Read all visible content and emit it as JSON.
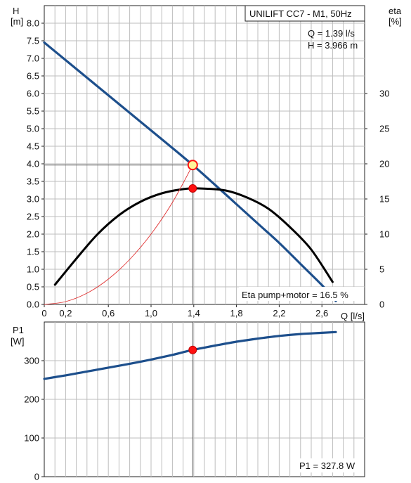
{
  "title": "UNILIFT CC7 - M1, 50Hz",
  "operating_point": {
    "q_text": "Q = 1.39 l/s",
    "h_text": "H = 3.966 m",
    "eta_text": "Eta pump+motor = 16.5 %",
    "p1_text": "P1 = 327.8 W"
  },
  "axes": {
    "h_unit_name": "H",
    "h_unit": "[m]",
    "eta_unit_name": "eta",
    "eta_unit": "[%]",
    "q_label": "Q [l/s]",
    "p1_unit_name": "P1",
    "p1_unit": "[W]"
  },
  "colors": {
    "h_curve": "#1d4f8c",
    "eta_curve": "#000000",
    "system_curve": "#e03030",
    "marker": "#ff1010",
    "marker_ring": "#ffd000",
    "grid": "#bdbdbd"
  },
  "chart_data": [
    {
      "type": "line",
      "title": "UNILIFT CC7 - M1, 50Hz",
      "xlabel": "Q [l/s]",
      "ylabel": "H [m]",
      "y2label": "eta [%]",
      "xlim": [
        0,
        3.0
      ],
      "ylim": [
        0,
        8.5
      ],
      "y2lim": [
        0,
        42.5
      ],
      "grid": true,
      "x_ticks": [
        "0",
        "0,2",
        "0,6",
        "1,0",
        "1,4",
        "1,8",
        "2,2",
        "2,6"
      ],
      "x_tick_values": [
        0,
        0.2,
        0.6,
        1.0,
        1.4,
        1.8,
        2.2,
        2.6
      ],
      "y_ticks": [
        "0.0",
        "0.5",
        "1.0",
        "1.5",
        "2.0",
        "2.5",
        "3.0",
        "3.5",
        "4.0",
        "4.5",
        "5.0",
        "5.5",
        "6.0",
        "6.5",
        "7.0",
        "7.5",
        "8.0"
      ],
      "y_tick_values": [
        0,
        0.5,
        1,
        1.5,
        2,
        2.5,
        3,
        3.5,
        4,
        4.5,
        5,
        5.5,
        6,
        6.5,
        7,
        7.5,
        8
      ],
      "y2_ticks": [
        "0",
        "5",
        "10",
        "15",
        "20",
        "25",
        "30"
      ],
      "y2_tick_values": [
        0,
        5,
        10,
        15,
        20,
        25,
        30
      ],
      "series": [
        {
          "axis": "y",
          "x": [
            0,
            0.2,
            0.4,
            0.6,
            0.8,
            1.0,
            1.2,
            1.39,
            1.6,
            1.8,
            2.0,
            2.2,
            2.4,
            2.6,
            2.73
          ],
          "values": [
            7.45,
            6.95,
            6.45,
            5.95,
            5.45,
            4.95,
            4.45,
            3.966,
            3.4,
            2.85,
            2.3,
            1.75,
            1.15,
            0.55,
            0.1
          ]
        },
        {
          "axis": "y2",
          "x": [
            0.1,
            0.3,
            0.5,
            0.7,
            0.9,
            1.1,
            1.3,
            1.45,
            1.7,
            1.9,
            2.1,
            2.3,
            2.5,
            2.7
          ],
          "values": [
            2.8,
            6.5,
            10.0,
            12.7,
            14.6,
            15.8,
            16.4,
            16.5,
            16.2,
            15.2,
            13.6,
            11.0,
            7.8,
            3.2
          ]
        },
        {
          "axis": "y",
          "x": [
            0,
            0.2,
            0.4,
            0.6,
            0.8,
            1.0,
            1.2,
            1.39
          ],
          "values": [
            0.0,
            0.08,
            0.32,
            0.72,
            1.28,
            2.0,
            2.9,
            3.966
          ]
        }
      ],
      "operating_point": {
        "x": 1.39,
        "y": 3.966,
        "eta": 16.5
      }
    },
    {
      "type": "line",
      "ylabel": "P1 [W]",
      "xlim": [
        0,
        3.0
      ],
      "ylim": [
        0,
        400
      ],
      "grid": true,
      "y_ticks": [
        "0",
        "100",
        "200",
        "300"
      ],
      "y_tick_values": [
        0,
        100,
        200,
        300
      ],
      "series": [
        {
          "x": [
            0,
            0.2,
            0.4,
            0.6,
            0.8,
            1.0,
            1.2,
            1.39,
            1.6,
            1.8,
            2.0,
            2.2,
            2.4,
            2.6,
            2.73
          ],
          "values": [
            253,
            262,
            272,
            282,
            292,
            303,
            315,
            327.8,
            339,
            349,
            357,
            364,
            369,
            372,
            374
          ]
        }
      ],
      "operating_point": {
        "x": 1.39,
        "y": 327.8
      }
    }
  ]
}
